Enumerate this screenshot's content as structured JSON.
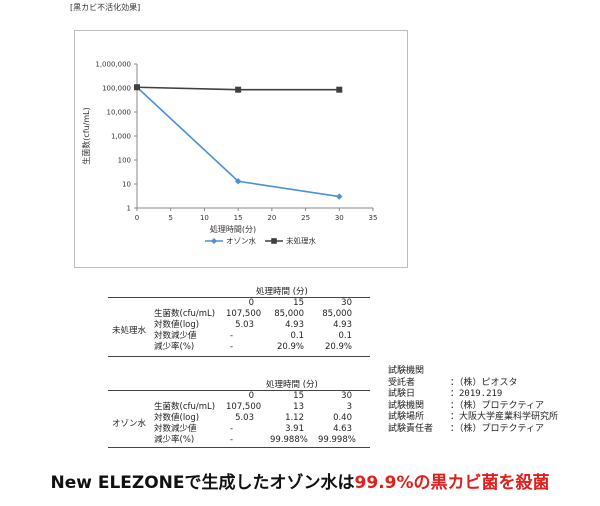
{
  "page_title": "[黒カビ不活化効果]",
  "chart_data": {
    "type": "line",
    "title": "",
    "xlabel": "処理時間(分)",
    "ylabel": "生菌数(cfu/mL)",
    "y_scale": "log",
    "ylim": [
      1,
      1000000
    ],
    "xlim": [
      0,
      35
    ],
    "x_ticks": [
      0,
      5,
      10,
      15,
      20,
      25,
      30,
      35
    ],
    "y_ticks": [
      1,
      10,
      100,
      1000,
      10000,
      100000,
      1000000
    ],
    "y_tick_labels": [
      "1",
      "10",
      "100",
      "1,000",
      "10,000",
      "100,000",
      "1,000,000"
    ],
    "grid": false,
    "legend_position": "bottom",
    "series": [
      {
        "name": "オゾン水",
        "color": "#4a90d9",
        "marker": "diamond",
        "x": [
          0,
          15,
          30
        ],
        "y": [
          107500,
          13,
          3
        ]
      },
      {
        "name": "未処理水",
        "color": "#404040",
        "marker": "square",
        "x": [
          0,
          15,
          30
        ],
        "y": [
          107500,
          85000,
          85000
        ]
      }
    ]
  },
  "table_untreated": {
    "group_label": "未処理水",
    "header_label": "処理時間 (分)",
    "cols": [
      "0",
      "15",
      "30"
    ],
    "rows": [
      {
        "label": "生菌数(cfu/mL)",
        "dash": "",
        "values": [
          "107,500",
          "85,000",
          "85,000"
        ]
      },
      {
        "label": "対数値(log)",
        "dash": "",
        "values": [
          "5.03",
          "4.93",
          "4.93"
        ]
      },
      {
        "label": "対数減少値",
        "dash": "-",
        "values": [
          "",
          "0.1",
          "0.1"
        ]
      },
      {
        "label": "減少率(%)",
        "dash": "-",
        "values": [
          "",
          "20.9%",
          "20.9%"
        ]
      }
    ]
  },
  "table_ozone": {
    "group_label": "オゾン水",
    "header_label": "処理時間 (分)",
    "cols": [
      "0",
      "15",
      "30"
    ],
    "rows": [
      {
        "label": "生菌数(cfu/mL)",
        "dash": "",
        "values": [
          "107,500",
          "13",
          "3"
        ]
      },
      {
        "label": "対数値(log)",
        "dash": "",
        "values": [
          "5.03",
          "1.12",
          "0.40"
        ]
      },
      {
        "label": "対数減少値",
        "dash": "-",
        "values": [
          "",
          "3.91",
          "4.63"
        ]
      },
      {
        "label": "減少率(%)",
        "dash": "-",
        "values": [
          "",
          "99.988%",
          "99.998%"
        ]
      }
    ]
  },
  "test_info": {
    "heading": "試験機関",
    "rows": [
      {
        "label": "受託者",
        "value": "：（株）ピオスタ"
      },
      {
        "label": "試験日",
        "value": "：2019.219"
      },
      {
        "label": "試験機関",
        "value": "：（株）プロテクティア"
      },
      {
        "label": "試験場所",
        "value": "：大阪大学産業科学研究所"
      },
      {
        "label": "試験責任者",
        "value": "：（株）プロテクティア"
      }
    ]
  },
  "banner": {
    "part1": "New ELEZONEで生成したオゾン水は",
    "part2": "99.9%の黒カビ菌を殺菌"
  }
}
